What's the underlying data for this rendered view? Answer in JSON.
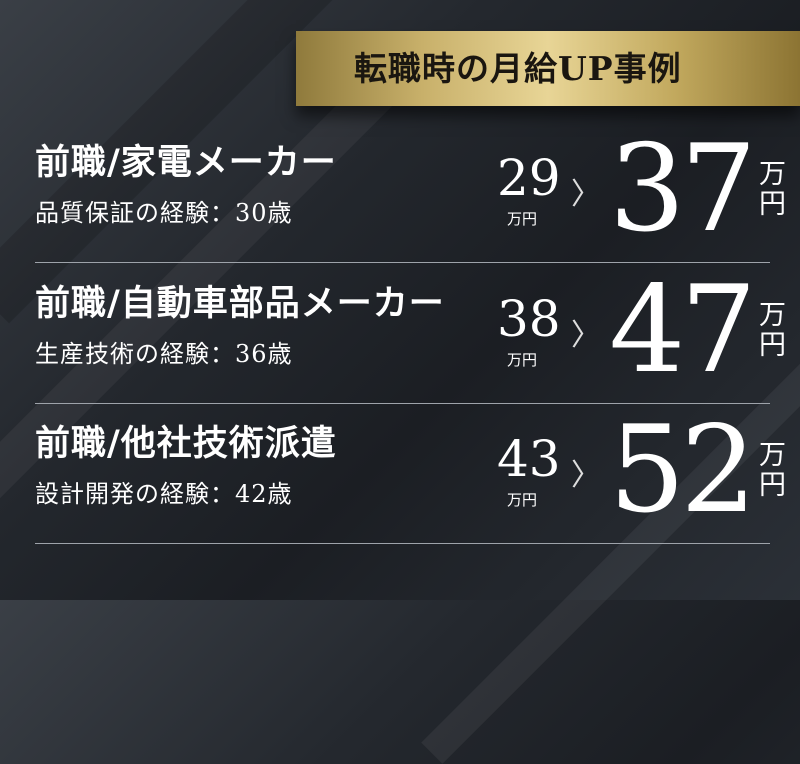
{
  "heading": "転職時の月給UP事例",
  "colors": {
    "gold": "#e8d596",
    "background": "#24282e"
  },
  "cases": [
    {
      "title": "前職/家電メーカー",
      "subtitle": "品質保証の経験：30歳",
      "before": "29",
      "before_unit": "万円",
      "arrow": "〉",
      "after": "37",
      "after_unit_top": "万",
      "after_unit_bottom": "円"
    },
    {
      "title": "前職/自動車部品メーカー",
      "subtitle": "生産技術の経験：36歳",
      "before": "38",
      "before_unit": "万円",
      "arrow": "〉",
      "after": "47",
      "after_unit_top": "万",
      "after_unit_bottom": "円"
    },
    {
      "title": "前職/他社技術派遣",
      "subtitle": "設計開発の経験：42歳",
      "before": "43",
      "before_unit": "万円",
      "arrow": "〉",
      "after": "52",
      "after_unit_top": "万",
      "after_unit_bottom": "円"
    }
  ]
}
